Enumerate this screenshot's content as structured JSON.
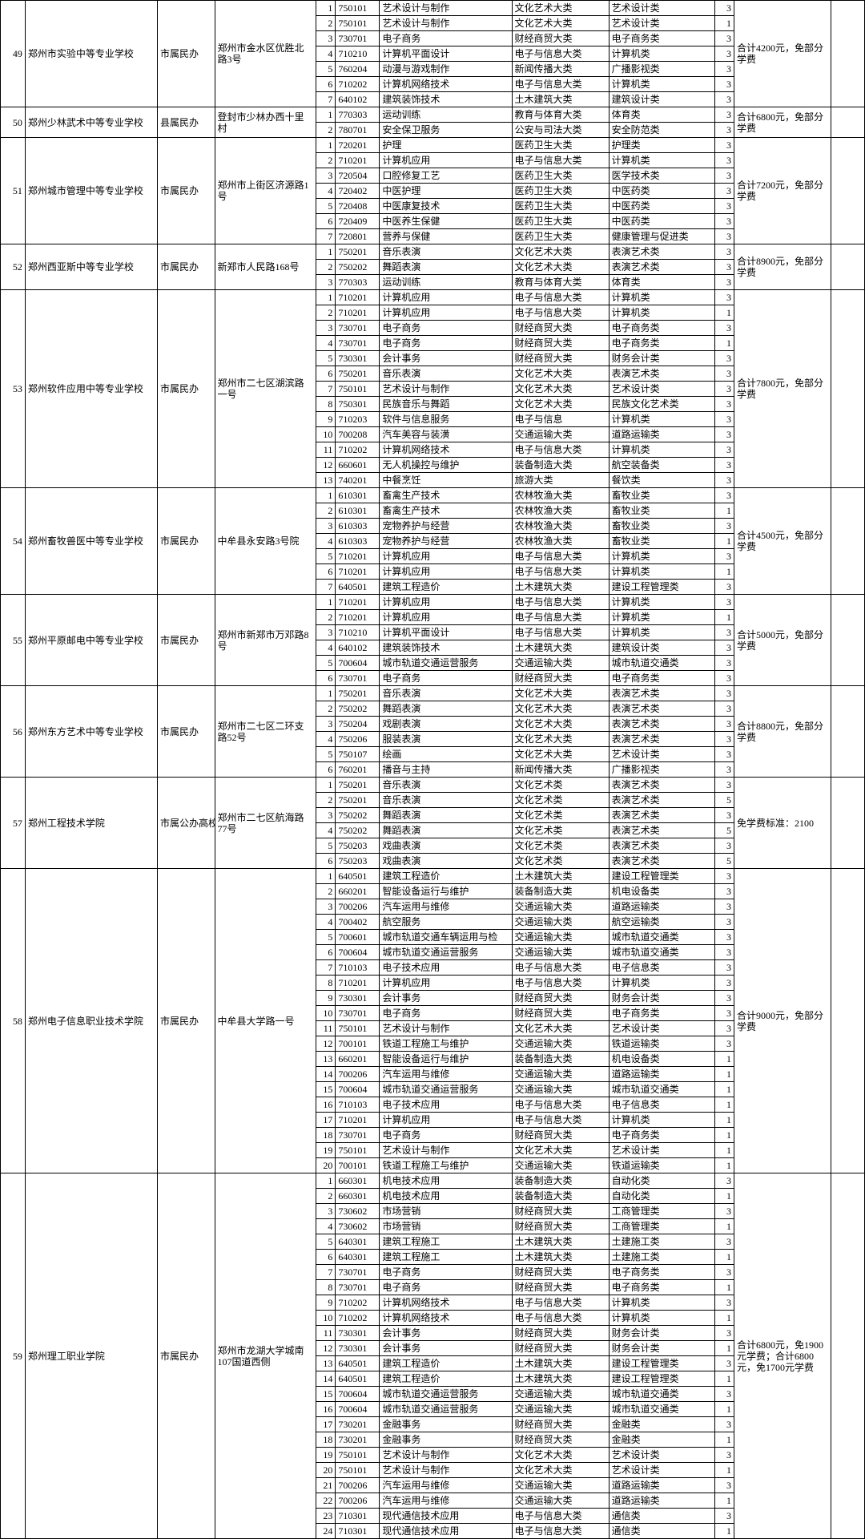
{
  "schools": [
    {
      "idx": "49",
      "name": "郑州市实验中等专业学校",
      "type": "市属民办",
      "addr": "郑州市金水区优胜北路3号",
      "fee": "合计4200元，免部分学费",
      "rows": [
        {
          "seq": "1",
          "code": "750101",
          "major": "艺术设计与制作",
          "cat": "文化艺术大类",
          "subcat": "艺术设计类",
          "yr": "3"
        },
        {
          "seq": "2",
          "code": "750101",
          "major": "艺术设计与制作",
          "cat": "文化艺术大类",
          "subcat": "艺术设计类",
          "yr": "1"
        },
        {
          "seq": "3",
          "code": "730701",
          "major": "电子商务",
          "cat": "财经商贸大类",
          "subcat": "电子商务类",
          "yr": "3"
        },
        {
          "seq": "4",
          "code": "710210",
          "major": "计算机平面设计",
          "cat": "电子与信息大类",
          "subcat": "计算机类",
          "yr": "3"
        },
        {
          "seq": "5",
          "code": "760204",
          "major": "动漫与游戏制作",
          "cat": "新闻传播大类",
          "subcat": "广播影视类",
          "yr": "3"
        },
        {
          "seq": "6",
          "code": "710202",
          "major": "计算机网络技术",
          "cat": "电子与信息大类",
          "subcat": "计算机类",
          "yr": "3"
        },
        {
          "seq": "7",
          "code": "640102",
          "major": "建筑装饰技术",
          "cat": "土木建筑大类",
          "subcat": "建筑设计类",
          "yr": "3"
        }
      ]
    },
    {
      "idx": "50",
      "name": "郑州少林武术中等专业学校",
      "type": "县属民办",
      "addr": "登封市少林办西十里村",
      "fee": "合计6800元，免部分学费",
      "rows": [
        {
          "seq": "1",
          "code": "770303",
          "major": "运动训练",
          "cat": "教育与体育大类",
          "subcat": "体育类",
          "yr": "3"
        },
        {
          "seq": "2",
          "code": "780701",
          "major": "安全保卫服务",
          "cat": "公安与司法大类",
          "subcat": "安全防范类",
          "yr": "3"
        }
      ]
    },
    {
      "idx": "51",
      "name": "郑州城市管理中等专业学校",
      "type": "市属民办",
      "addr": "郑州市上街区济源路1号",
      "fee": "合计7200元，免部分学费",
      "rows": [
        {
          "seq": "1",
          "code": "720201",
          "major": "护理",
          "cat": "医药卫生大类",
          "subcat": "护理类",
          "yr": "3"
        },
        {
          "seq": "2",
          "code": "710201",
          "major": "计算机应用",
          "cat": "电子与信息大类",
          "subcat": "计算机类",
          "yr": "3"
        },
        {
          "seq": "3",
          "code": "720504",
          "major": "口腔修复工艺",
          "cat": "医药卫生大类",
          "subcat": "医学技术类",
          "yr": "3"
        },
        {
          "seq": "4",
          "code": "720402",
          "major": "中医护理",
          "cat": "医药卫生大类",
          "subcat": "中医药类",
          "yr": "3"
        },
        {
          "seq": "5",
          "code": "720408",
          "major": "中医康复技术",
          "cat": "医药卫生大类",
          "subcat": "中医药类",
          "yr": "3"
        },
        {
          "seq": "6",
          "code": "720409",
          "major": "中医养生保健",
          "cat": "医药卫生大类",
          "subcat": "中医药类",
          "yr": "3"
        },
        {
          "seq": "7",
          "code": "720801",
          "major": "营养与保健",
          "cat": "医药卫生大类",
          "subcat": "健康管理与促进类",
          "yr": "3"
        }
      ]
    },
    {
      "idx": "52",
      "name": "郑州西亚斯中等专业学校",
      "type": "市属民办",
      "addr": "新郑市人民路168号",
      "fee": "合计8900元，免部分学费",
      "rows": [
        {
          "seq": "1",
          "code": "750201",
          "major": "音乐表演",
          "cat": "文化艺术大类",
          "subcat": "表演艺术类",
          "yr": "3"
        },
        {
          "seq": "2",
          "code": "750202",
          "major": "舞蹈表演",
          "cat": "文化艺术大类",
          "subcat": "表演艺术类",
          "yr": "3"
        },
        {
          "seq": "3",
          "code": "770303",
          "major": "运动训练",
          "cat": "教育与体育大类",
          "subcat": "体育类",
          "yr": "3"
        }
      ]
    },
    {
      "idx": "53",
      "name": "郑州软件应用中等专业学校",
      "type": "市属民办",
      "addr": "郑州市二七区湖滨路一号",
      "fee": "合计7800元，免部分学费",
      "rows": [
        {
          "seq": "1",
          "code": "710201",
          "major": "计算机应用",
          "cat": "电子与信息大类",
          "subcat": "计算机类",
          "yr": "3"
        },
        {
          "seq": "2",
          "code": "710201",
          "major": "计算机应用",
          "cat": "电子与信息大类",
          "subcat": "计算机类",
          "yr": "1"
        },
        {
          "seq": "3",
          "code": "730701",
          "major": "电子商务",
          "cat": "财经商贸大类",
          "subcat": "电子商务类",
          "yr": "3"
        },
        {
          "seq": "4",
          "code": "730701",
          "major": "电子商务",
          "cat": "财经商贸大类",
          "subcat": "电子商务类",
          "yr": "1"
        },
        {
          "seq": "5",
          "code": "730301",
          "major": "会计事务",
          "cat": "财经商贸大类",
          "subcat": "财务会计类",
          "yr": "3"
        },
        {
          "seq": "6",
          "code": "750201",
          "major": "音乐表演",
          "cat": "文化艺术大类",
          "subcat": "表演艺术类",
          "yr": "3"
        },
        {
          "seq": "7",
          "code": "750101",
          "major": "艺术设计与制作",
          "cat": "文化艺术大类",
          "subcat": "艺术设计类",
          "yr": "3"
        },
        {
          "seq": "8",
          "code": "750301",
          "major": "民族音乐与舞蹈",
          "cat": "文化艺术大类",
          "subcat": "民族文化艺术类",
          "yr": "3"
        },
        {
          "seq": "9",
          "code": "710203",
          "major": "软件与信息服务",
          "cat": "电子与信息",
          "subcat": "计算机类",
          "yr": "3"
        },
        {
          "seq": "10",
          "code": "700208",
          "major": "汽车美容与装潢",
          "cat": "交通运输大类",
          "subcat": "道路运输类",
          "yr": "3"
        },
        {
          "seq": "11",
          "code": "710202",
          "major": "计算机网络技术",
          "cat": "电子与信息大类",
          "subcat": "计算机类",
          "yr": "3"
        },
        {
          "seq": "12",
          "code": "660601",
          "major": "无人机操控与维护",
          "cat": "装备制造大类",
          "subcat": "航空装备类",
          "yr": "3"
        },
        {
          "seq": "13",
          "code": "740201",
          "major": "中餐烹饪",
          "cat": "旅游大类",
          "subcat": "餐饮类",
          "yr": "3"
        }
      ]
    },
    {
      "idx": "54",
      "name": "郑州畜牧兽医中等专业学校",
      "type": "市属民办",
      "addr": "中牟县永安路3号院",
      "fee": "合计4500元，免部分学费",
      "rows": [
        {
          "seq": "1",
          "code": "610301",
          "major": "畜禽生产技术",
          "cat": "农林牧渔大类",
          "subcat": "畜牧业类",
          "yr": "3"
        },
        {
          "seq": "2",
          "code": "610301",
          "major": "畜禽生产技术",
          "cat": "农林牧渔大类",
          "subcat": "畜牧业类",
          "yr": "1"
        },
        {
          "seq": "3",
          "code": "610303",
          "major": "宠物养护与经营",
          "cat": "农林牧渔大类",
          "subcat": "畜牧业类",
          "yr": "3"
        },
        {
          "seq": "4",
          "code": "610303",
          "major": "宠物养护与经营",
          "cat": "农林牧渔大类",
          "subcat": "畜牧业类",
          "yr": "1"
        },
        {
          "seq": "5",
          "code": "710201",
          "major": "计算机应用",
          "cat": "电子与信息大类",
          "subcat": "计算机类",
          "yr": "3"
        },
        {
          "seq": "6",
          "code": "710201",
          "major": "计算机应用",
          "cat": "电子与信息大类",
          "subcat": "计算机类",
          "yr": "1"
        },
        {
          "seq": "7",
          "code": "640501",
          "major": "建筑工程造价",
          "cat": "土木建筑大类",
          "subcat": "建设工程管理类",
          "yr": "3"
        }
      ]
    },
    {
      "idx": "55",
      "name": "郑州平原邮电中等专业学校",
      "type": "市属民办",
      "addr": "郑州市新郑市万邓路8号",
      "fee": "合计5000元，免部分学费",
      "rows": [
        {
          "seq": "1",
          "code": "710201",
          "major": "计算机应用",
          "cat": "电子与信息大类",
          "subcat": "计算机类",
          "yr": "3"
        },
        {
          "seq": "2",
          "code": "710201",
          "major": "计算机应用",
          "cat": "电子与信息大类",
          "subcat": "计算机类",
          "yr": "1"
        },
        {
          "seq": "3",
          "code": "710210",
          "major": "计算机平面设计",
          "cat": "电子与信息大类",
          "subcat": "计算机类",
          "yr": "3"
        },
        {
          "seq": "4",
          "code": "640102",
          "major": "建筑装饰技术",
          "cat": "土木建筑大类",
          "subcat": "建筑设计类",
          "yr": "3"
        },
        {
          "seq": "5",
          "code": "700604",
          "major": "城市轨道交通运营服务",
          "cat": "交通运输大类",
          "subcat": "城市轨道交通类",
          "yr": "3"
        },
        {
          "seq": "6",
          "code": "730701",
          "major": "电子商务",
          "cat": "财经商贸大类",
          "subcat": "电子商务类",
          "yr": "3"
        }
      ]
    },
    {
      "idx": "56",
      "name": "郑州东方艺术中等专业学校",
      "type": "市属民办",
      "addr": "郑州市二七区二环支路52号",
      "fee": "合计8800元，免部分学费",
      "rows": [
        {
          "seq": "1",
          "code": "750201",
          "major": "音乐表演",
          "cat": "文化艺术大类",
          "subcat": "表演艺术类",
          "yr": "3"
        },
        {
          "seq": "2",
          "code": "750202",
          "major": "舞蹈表演",
          "cat": "文化艺术大类",
          "subcat": "表演艺术类",
          "yr": "3"
        },
        {
          "seq": "3",
          "code": "750204",
          "major": "戏剧表演",
          "cat": "文化艺术大类",
          "subcat": "表演艺术类",
          "yr": "3"
        },
        {
          "seq": "4",
          "code": "750206",
          "major": "服装表演",
          "cat": "文化艺术大类",
          "subcat": "表演艺术类",
          "yr": "3"
        },
        {
          "seq": "5",
          "code": "750107",
          "major": "绘画",
          "cat": "文化艺术大类",
          "subcat": "艺术设计类",
          "yr": "3"
        },
        {
          "seq": "6",
          "code": "760201",
          "major": "播音与主持",
          "cat": "新闻传播大类",
          "subcat": "广播影视类",
          "yr": "3"
        }
      ]
    },
    {
      "idx": "57",
      "name": "郑州工程技术学院",
      "type": "市属公办高校中专部",
      "addr": "郑州市二七区航海路77号",
      "fee": "免学费标准：2100",
      "rows": [
        {
          "seq": "1",
          "code": "750201",
          "major": "音乐表演",
          "cat": "文化艺术类",
          "subcat": "表演艺术类",
          "yr": "3"
        },
        {
          "seq": "2",
          "code": "750201",
          "major": "音乐表演",
          "cat": "文化艺术类",
          "subcat": "表演艺术类",
          "yr": "5"
        },
        {
          "seq": "3",
          "code": "750202",
          "major": "舞蹈表演",
          "cat": "文化艺术类",
          "subcat": "表演艺术类",
          "yr": "3"
        },
        {
          "seq": "4",
          "code": "750202",
          "major": "舞蹈表演",
          "cat": "文化艺术类",
          "subcat": "表演艺术类",
          "yr": "5"
        },
        {
          "seq": "5",
          "code": "750203",
          "major": "戏曲表演",
          "cat": "文化艺术类",
          "subcat": "表演艺术类",
          "yr": "3"
        },
        {
          "seq": "6",
          "code": "750203",
          "major": "戏曲表演",
          "cat": "文化艺术类",
          "subcat": "表演艺术类",
          "yr": "5"
        }
      ]
    },
    {
      "idx": "58",
      "name": "郑州电子信息职业技术学院",
      "type": "市属民办",
      "addr": "中牟县大学路一号",
      "fee": "合计9000元，免部分学费",
      "rows": [
        {
          "seq": "1",
          "code": "640501",
          "major": "建筑工程造价",
          "cat": "土木建筑大类",
          "subcat": "建设工程管理类",
          "yr": "3"
        },
        {
          "seq": "2",
          "code": "660201",
          "major": "智能设备运行与维护",
          "cat": "装备制造大类",
          "subcat": "机电设备类",
          "yr": "3"
        },
        {
          "seq": "3",
          "code": "700206",
          "major": "汽车运用与维修",
          "cat": "交通运输大类",
          "subcat": "道路运输类",
          "yr": "3"
        },
        {
          "seq": "4",
          "code": "700402",
          "major": "航空服务",
          "cat": "交通运输大类",
          "subcat": "航空运输类",
          "yr": "3"
        },
        {
          "seq": "5",
          "code": "700601",
          "major": "城市轨道交通车辆运用与检",
          "cat": "交通运输大类",
          "subcat": "城市轨道交通类",
          "yr": "3"
        },
        {
          "seq": "6",
          "code": "700604",
          "major": "城市轨道交通运营服务",
          "cat": "交通运输大类",
          "subcat": "城市轨道交通类",
          "yr": "3"
        },
        {
          "seq": "7",
          "code": "710103",
          "major": "电子技术应用",
          "cat": "电子与信息大类",
          "subcat": "电子信息类",
          "yr": "3"
        },
        {
          "seq": "8",
          "code": "710201",
          "major": "计算机应用",
          "cat": "电子与信息大类",
          "subcat": "计算机类",
          "yr": "3"
        },
        {
          "seq": "9",
          "code": "730301",
          "major": "会计事务",
          "cat": "财经商贸大类",
          "subcat": "财务会计类",
          "yr": "3"
        },
        {
          "seq": "10",
          "code": "730701",
          "major": "电子商务",
          "cat": "财经商贸大类",
          "subcat": "电子商务类",
          "yr": "3"
        },
        {
          "seq": "11",
          "code": "750101",
          "major": "艺术设计与制作",
          "cat": "文化艺术大类",
          "subcat": "艺术设计类",
          "yr": "3"
        },
        {
          "seq": "12",
          "code": "700101",
          "major": "铁道工程施工与维护",
          "cat": "交通运输大类",
          "subcat": "铁道运输类",
          "yr": "3"
        },
        {
          "seq": "13",
          "code": "660201",
          "major": "智能设备运行与维护",
          "cat": "装备制造大类",
          "subcat": "机电设备类",
          "yr": "1"
        },
        {
          "seq": "14",
          "code": "700206",
          "major": "汽车运用与维修",
          "cat": "交通运输大类",
          "subcat": "道路运输类",
          "yr": "1"
        },
        {
          "seq": "15",
          "code": "700604",
          "major": "城市轨道交通运营服务",
          "cat": "交通运输大类",
          "subcat": "城市轨道交通类",
          "yr": "1"
        },
        {
          "seq": "16",
          "code": "710103",
          "major": "电子技术应用",
          "cat": "电子与信息大类",
          "subcat": "电子信息类",
          "yr": "1"
        },
        {
          "seq": "17",
          "code": "710201",
          "major": "计算机应用",
          "cat": "电子与信息大类",
          "subcat": "计算机类",
          "yr": "1"
        },
        {
          "seq": "18",
          "code": "730701",
          "major": "电子商务",
          "cat": "财经商贸大类",
          "subcat": "电子商务类",
          "yr": "1"
        },
        {
          "seq": "19",
          "code": "750101",
          "major": "艺术设计与制作",
          "cat": "文化艺术大类",
          "subcat": "艺术设计类",
          "yr": "1"
        },
        {
          "seq": "20",
          "code": "700101",
          "major": "铁道工程施工与维护",
          "cat": "交通运输大类",
          "subcat": "铁道运输类",
          "yr": "1"
        }
      ]
    },
    {
      "idx": "59",
      "name": "郑州理工职业学院",
      "type": "市属民办",
      "addr": "郑州市龙湖大学城南107国道西侧",
      "fee": "合计6800元，免1900元学费；合计6800元，免1700元学费",
      "rows": [
        {
          "seq": "1",
          "code": "660301",
          "major": "机电技术应用",
          "cat": "装备制造大类",
          "subcat": "自动化类",
          "yr": "3"
        },
        {
          "seq": "2",
          "code": "660301",
          "major": "机电技术应用",
          "cat": "装备制造大类",
          "subcat": "自动化类",
          "yr": "1"
        },
        {
          "seq": "3",
          "code": "730602",
          "major": "市场营销",
          "cat": "财经商贸大类",
          "subcat": "工商管理类",
          "yr": "3"
        },
        {
          "seq": "4",
          "code": "730602",
          "major": "市场营销",
          "cat": "财经商贸大类",
          "subcat": "工商管理类",
          "yr": "1"
        },
        {
          "seq": "5",
          "code": "640301",
          "major": "建筑工程施工",
          "cat": "土木建筑大类",
          "subcat": "土建施工类",
          "yr": "3"
        },
        {
          "seq": "6",
          "code": "640301",
          "major": "建筑工程施工",
          "cat": "土木建筑大类",
          "subcat": "土建施工类",
          "yr": "1"
        },
        {
          "seq": "7",
          "code": "730701",
          "major": "电子商务",
          "cat": "财经商贸大类",
          "subcat": "电子商务类",
          "yr": "3"
        },
        {
          "seq": "8",
          "code": "730701",
          "major": "电子商务",
          "cat": "财经商贸大类",
          "subcat": "电子商务类",
          "yr": "1"
        },
        {
          "seq": "9",
          "code": "710202",
          "major": "计算机网络技术",
          "cat": "电子与信息大类",
          "subcat": "计算机类",
          "yr": "3"
        },
        {
          "seq": "10",
          "code": "710202",
          "major": "计算机网络技术",
          "cat": "电子与信息大类",
          "subcat": "计算机类",
          "yr": "1"
        },
        {
          "seq": "11",
          "code": "730301",
          "major": "会计事务",
          "cat": "财经商贸大类",
          "subcat": "财务会计类",
          "yr": "3"
        },
        {
          "seq": "12",
          "code": "730301",
          "major": "会计事务",
          "cat": "财经商贸大类",
          "subcat": "财务会计类",
          "yr": "1"
        },
        {
          "seq": "13",
          "code": "640501",
          "major": "建筑工程造价",
          "cat": "土木建筑大类",
          "subcat": "建设工程管理类",
          "yr": "3"
        },
        {
          "seq": "14",
          "code": "640501",
          "major": "建筑工程造价",
          "cat": "土木建筑大类",
          "subcat": "建设工程管理类",
          "yr": "1"
        },
        {
          "seq": "15",
          "code": "700604",
          "major": "城市轨道交通运营服务",
          "cat": "交通运输大类",
          "subcat": "城市轨道交通类",
          "yr": "3"
        },
        {
          "seq": "16",
          "code": "700604",
          "major": "城市轨道交通运营服务",
          "cat": "交通运输大类",
          "subcat": "城市轨道交通类",
          "yr": "1"
        },
        {
          "seq": "17",
          "code": "730201",
          "major": "金融事务",
          "cat": "财经商贸大类",
          "subcat": "金融类",
          "yr": "3"
        },
        {
          "seq": "18",
          "code": "730201",
          "major": "金融事务",
          "cat": "财经商贸大类",
          "subcat": "金融类",
          "yr": "1"
        },
        {
          "seq": "19",
          "code": "750101",
          "major": "艺术设计与制作",
          "cat": "文化艺术大类",
          "subcat": "艺术设计类",
          "yr": "3"
        },
        {
          "seq": "20",
          "code": "750101",
          "major": "艺术设计与制作",
          "cat": "文化艺术大类",
          "subcat": "艺术设计类",
          "yr": "1"
        },
        {
          "seq": "21",
          "code": "700206",
          "major": "汽车运用与维修",
          "cat": "交通运输大类",
          "subcat": "道路运输类",
          "yr": "3"
        },
        {
          "seq": "22",
          "code": "700206",
          "major": "汽车运用与维修",
          "cat": "交通运输大类",
          "subcat": "道路运输类",
          "yr": "1"
        },
        {
          "seq": "23",
          "code": "710301",
          "major": "现代通信技术应用",
          "cat": "电子与信息大类",
          "subcat": "通信类",
          "yr": "3"
        },
        {
          "seq": "24",
          "code": "710301",
          "major": "现代通信技术应用",
          "cat": "电子与信息大类",
          "subcat": "通信类",
          "yr": "1"
        }
      ]
    }
  ]
}
